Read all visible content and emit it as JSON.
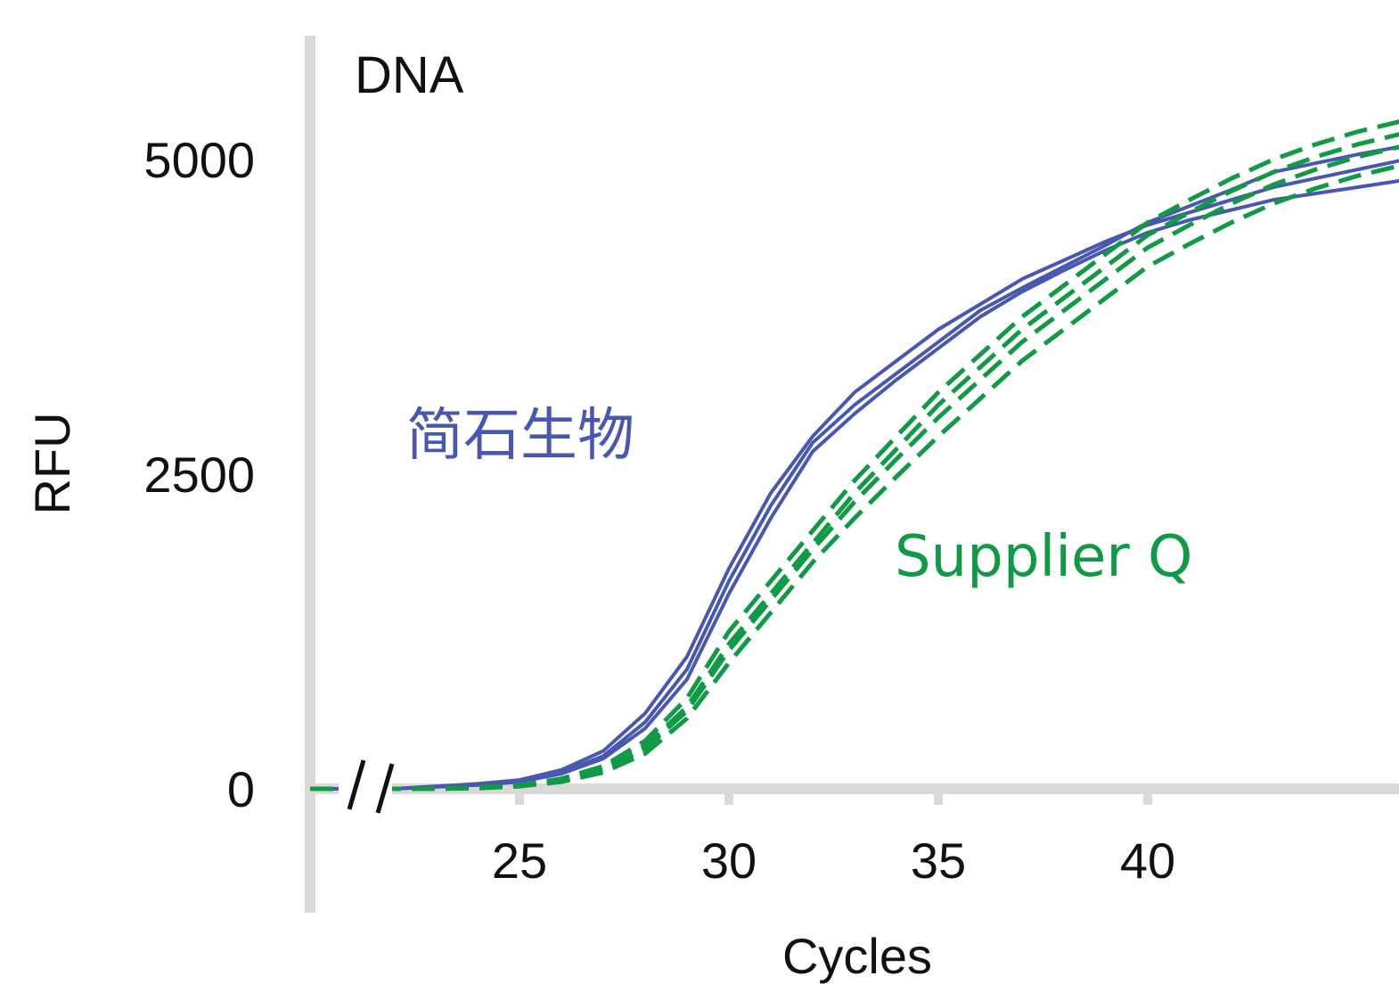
{
  "chart_data": {
    "type": "line",
    "title": "DNA",
    "xlabel": "Cycles",
    "ylabel": "RFU",
    "xlim": [
      20,
      47.5
    ],
    "ylim": [
      0,
      5700
    ],
    "axis_break": {
      "axis": "x",
      "at": 21.5
    },
    "grid": false,
    "x_ticks": [
      25,
      30,
      35,
      40
    ],
    "x_tick_labels": [
      "25",
      "30",
      "35",
      "40"
    ],
    "y_ticks": [
      0,
      2500,
      5000
    ],
    "y_tick_labels": [
      "0",
      "2500",
      "5000"
    ],
    "series_labels": [
      {
        "text": "简石生物",
        "color": "#4858b0"
      },
      {
        "text": "Supplier Q",
        "color": "#119a46"
      }
    ],
    "x": [
      20,
      21,
      22,
      23,
      24,
      25,
      26,
      27,
      28,
      29,
      30,
      31,
      32,
      33,
      34,
      35,
      36,
      37,
      38,
      39,
      40,
      41,
      42,
      43,
      44,
      45,
      46,
      47,
      47.5
    ],
    "series": [
      {
        "group": "简石生物",
        "color": "#4858b0",
        "style": "solid",
        "values": [
          0,
          0,
          0,
          20,
          40,
          70,
          150,
          300,
          600,
          1050,
          1750,
          2350,
          2800,
          3150,
          3400,
          3650,
          3850,
          4050,
          4200,
          4350,
          4480,
          4580,
          4680,
          4780,
          4850,
          4920,
          4990,
          5040,
          5060
        ]
      },
      {
        "group": "简石生物",
        "color": "#4858b0",
        "style": "solid",
        "values": [
          0,
          0,
          0,
          20,
          35,
          60,
          130,
          260,
          530,
          950,
          1650,
          2250,
          2750,
          3050,
          3300,
          3550,
          3800,
          3980,
          4150,
          4320,
          4500,
          4630,
          4760,
          4900,
          4970,
          5040,
          5100,
          5150,
          5170
        ]
      },
      {
        "group": "简石生物",
        "color": "#4858b0",
        "style": "solid",
        "values": [
          0,
          0,
          0,
          15,
          30,
          55,
          120,
          240,
          480,
          870,
          1550,
          2150,
          2680,
          2980,
          3250,
          3500,
          3750,
          3950,
          4120,
          4280,
          4420,
          4520,
          4600,
          4680,
          4730,
          4780,
          4830,
          4860,
          4870
        ]
      },
      {
        "group": "Supplier Q",
        "color": "#119a46",
        "style": "dashed",
        "values": [
          0,
          0,
          0,
          0,
          10,
          30,
          80,
          180,
          380,
          720,
          1250,
          1650,
          2050,
          2450,
          2800,
          3150,
          3450,
          3750,
          4000,
          4250,
          4500,
          4680,
          4850,
          5000,
          5120,
          5220,
          5300,
          5360,
          5390
        ]
      },
      {
        "group": "Supplier Q",
        "color": "#119a46",
        "style": "dashed",
        "values": [
          0,
          0,
          0,
          0,
          10,
          25,
          70,
          160,
          340,
          650,
          1150,
          1550,
          1950,
          2350,
          2700,
          3050,
          3350,
          3650,
          3900,
          4150,
          4400,
          4580,
          4750,
          4900,
          5020,
          5120,
          5200,
          5260,
          5290
        ]
      },
      {
        "group": "Supplier Q",
        "color": "#119a46",
        "style": "dashed",
        "values": [
          0,
          0,
          0,
          0,
          10,
          25,
          65,
          150,
          320,
          620,
          1100,
          1500,
          1900,
          2280,
          2620,
          2950,
          3250,
          3550,
          3800,
          4050,
          4300,
          4480,
          4650,
          4800,
          4920,
          5020,
          5100,
          5160,
          5190
        ]
      },
      {
        "group": "Supplier Q",
        "color": "#119a46",
        "style": "dashed",
        "values": [
          0,
          0,
          0,
          0,
          5,
          20,
          55,
          130,
          280,
          560,
          1000,
          1400,
          1800,
          2150,
          2480,
          2800,
          3100,
          3400,
          3650,
          3900,
          4150,
          4330,
          4500,
          4650,
          4770,
          4870,
          4950,
          5010,
          5040
        ]
      }
    ]
  }
}
